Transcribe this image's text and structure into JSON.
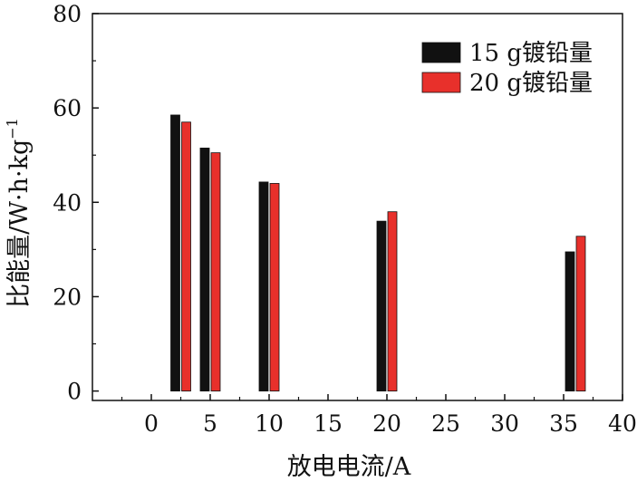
{
  "chart_data": {
    "type": "bar",
    "xlabel": "放电电流/A",
    "ylabel": "比能量/W·h·kg",
    "ylabel_sup": "−1",
    "xlim": [
      -5,
      40
    ],
    "ylim": [
      -2,
      80
    ],
    "xticks": [
      0,
      5,
      10,
      15,
      20,
      25,
      30,
      35,
      40
    ],
    "yticks": [
      0,
      20,
      40,
      60,
      80
    ],
    "x": [
      2.5,
      5,
      10,
      20,
      36
    ],
    "grid": false,
    "legend_position": "top-right",
    "series": [
      {
        "name": "15 g镀铅量",
        "color": "#111111",
        "values": [
          58.5,
          51.5,
          44.3,
          36.0,
          29.5
        ]
      },
      {
        "name": "20 g镀铅量",
        "color": "#e8302b",
        "values": [
          57.0,
          50.5,
          44.0,
          38.0,
          32.8
        ]
      }
    ]
  }
}
